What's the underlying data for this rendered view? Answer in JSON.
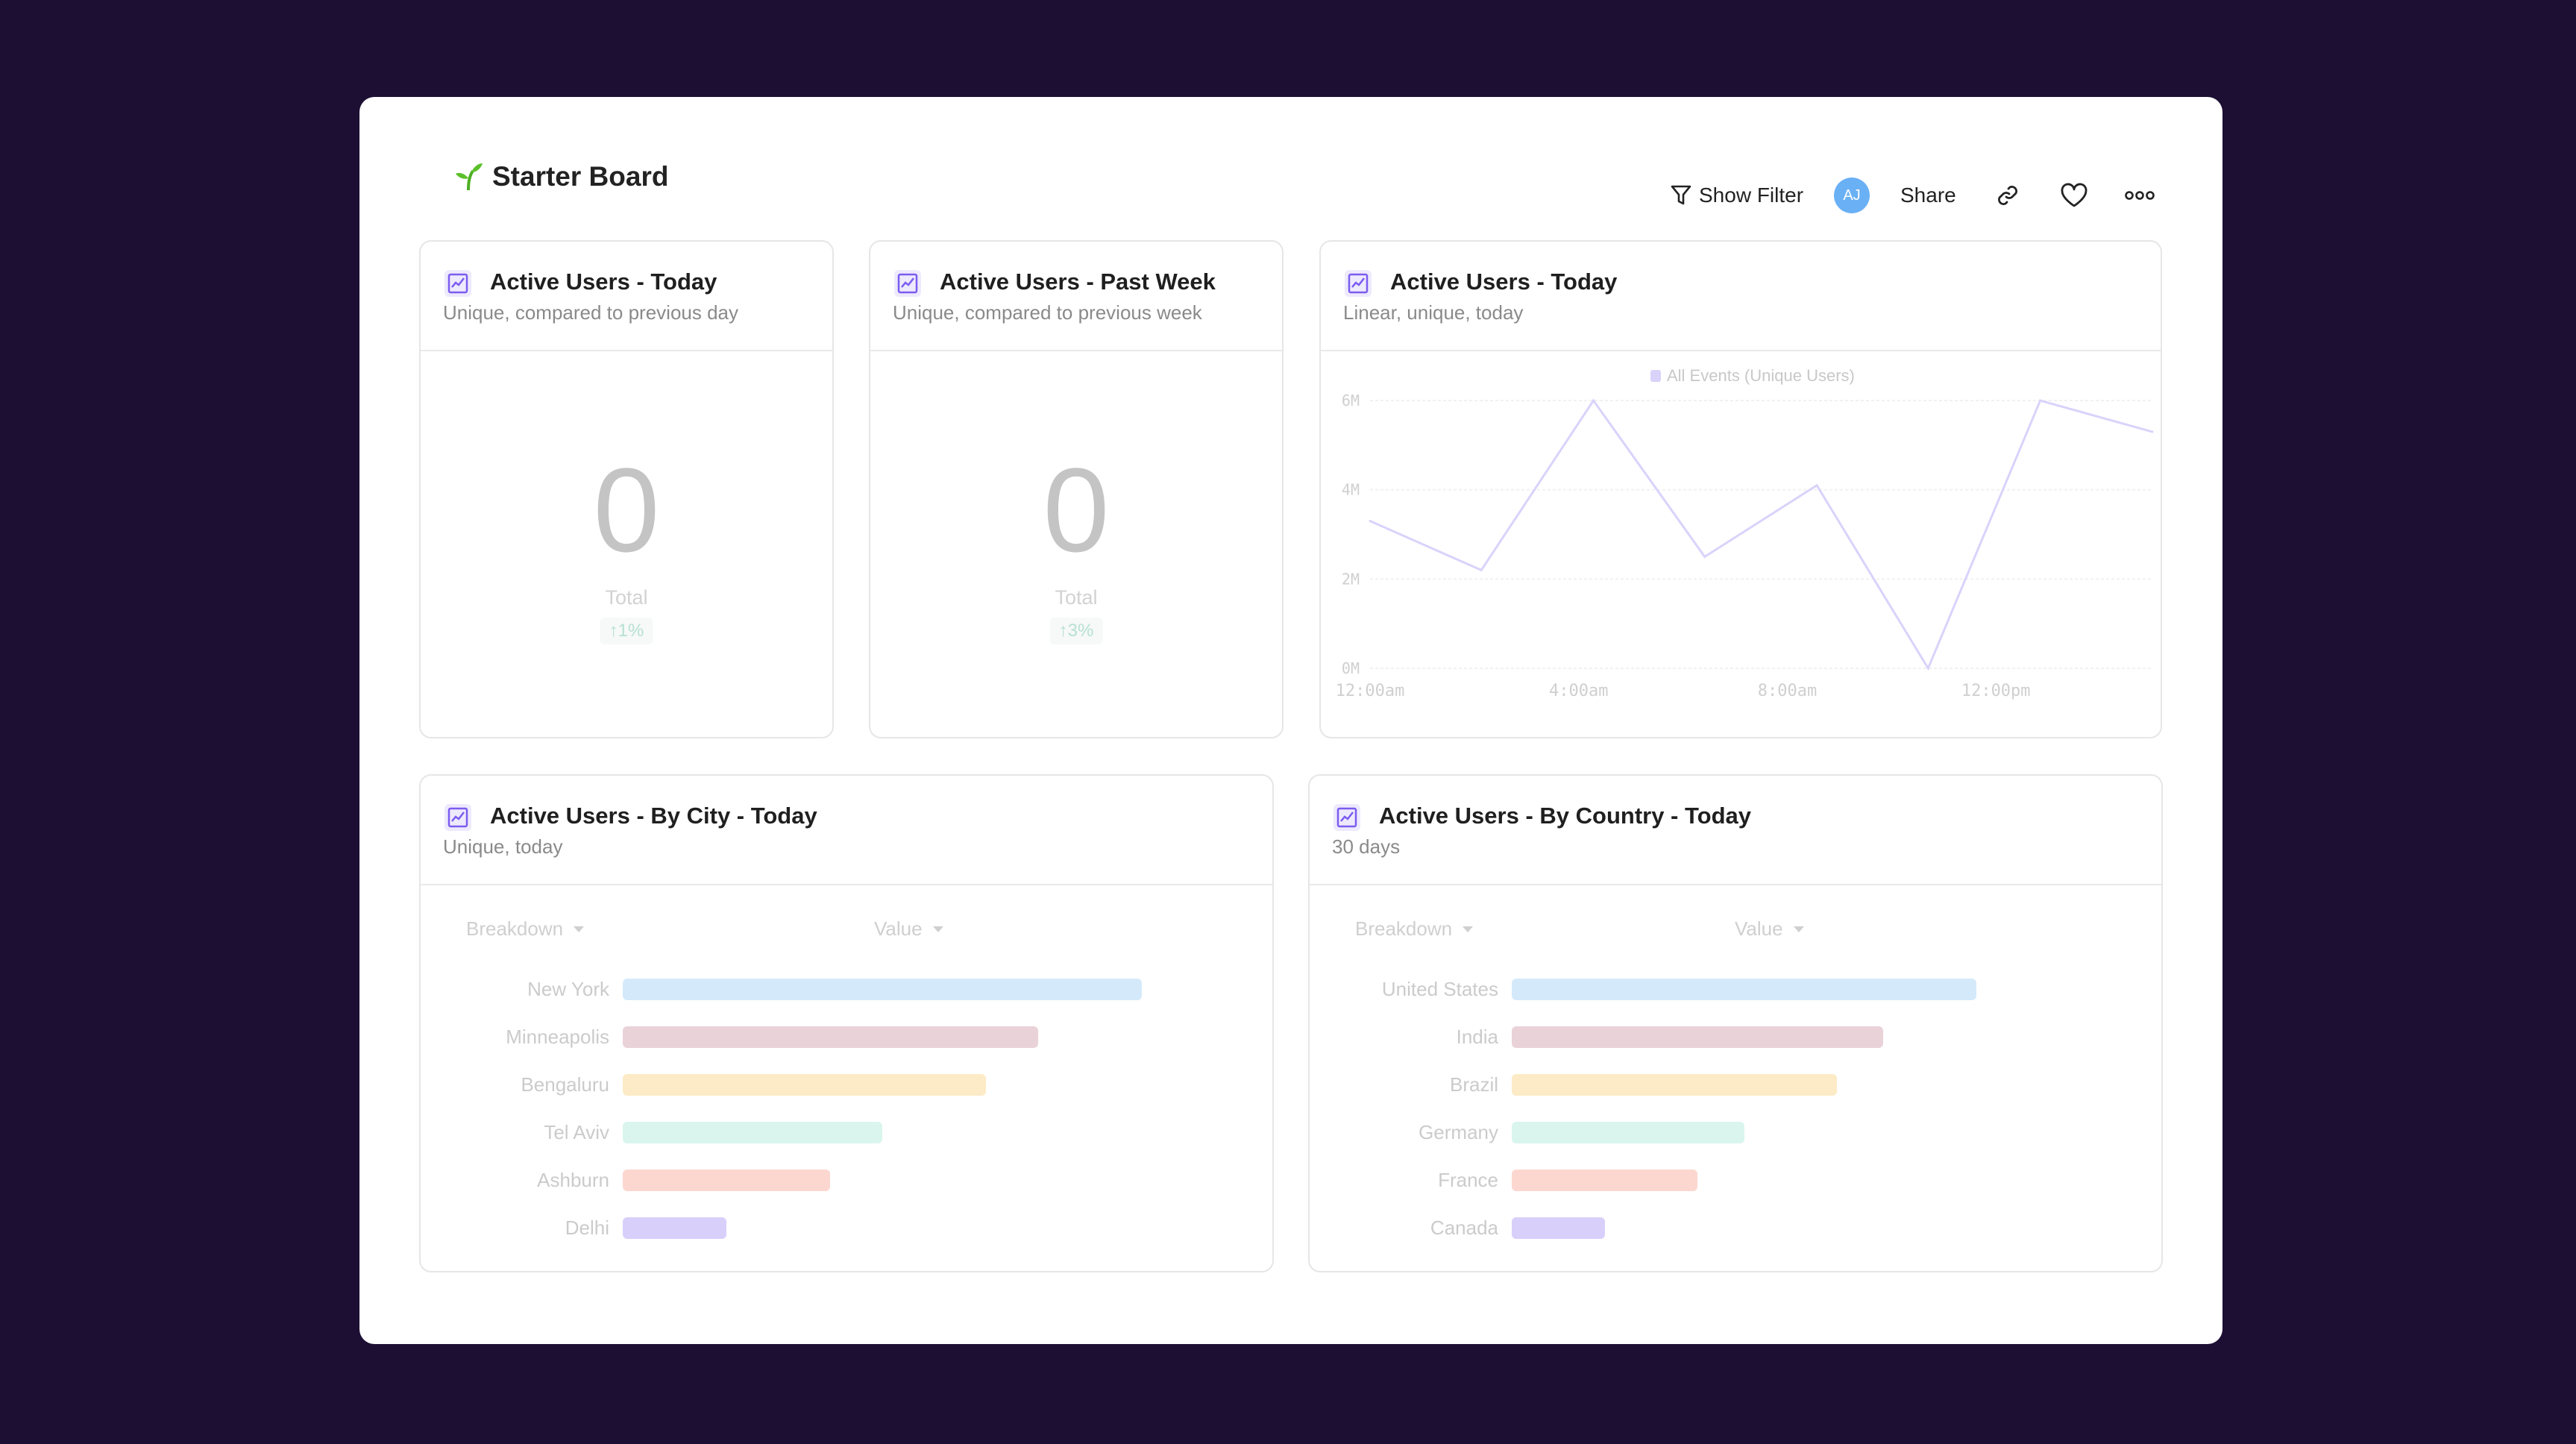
{
  "header": {
    "title": "Starter Board",
    "show_filter": "Show Filter",
    "avatar_initials": "AJ",
    "share": "Share",
    "avatar_color": "#6ab0f5"
  },
  "cards": [
    {
      "title": "Active Users - Today",
      "subtitle": "Unique, compared to previous day",
      "value": "0",
      "value_label": "Total",
      "change": "↑1%"
    },
    {
      "title": "Active Users - Past Week",
      "subtitle": "Unique, compared to previous week",
      "value": "0",
      "value_label": "Total",
      "change": "↑3%"
    },
    {
      "title": "Active Users - Today",
      "subtitle": "Linear, unique, today"
    },
    {
      "title": "Active Users - By City - Today",
      "subtitle": "Unique, today",
      "col_breakdown": "Breakdown",
      "col_value": "Value"
    },
    {
      "title": "Active Users - By Country - Today",
      "subtitle": "30 days",
      "col_breakdown": "Breakdown",
      "col_value": "Value"
    }
  ],
  "chart_data": [
    {
      "type": "line",
      "legend": "All Events (Unique Users)",
      "legend_placement": "top-center",
      "color": "#d9d3fb",
      "x": [
        "12:00am",
        "2:08am",
        "4:17am",
        "6:25am",
        "8:34am",
        "10:42am",
        "12:51pm",
        "3:00pm"
      ],
      "values": [
        3300000,
        2200000,
        6000000,
        2500000,
        4100000,
        0,
        6000000,
        5300000
      ],
      "yticks": [
        "0M",
        "2M",
        "4M",
        "6M"
      ],
      "ylim": [
        0,
        6000000
      ],
      "xticks": [
        "12:00am",
        "4:00am",
        "8:00am",
        "12:00pm"
      ],
      "grid": true
    },
    {
      "type": "bar",
      "orientation": "horizontal",
      "categories": [
        "New York",
        "Minneapolis",
        "Bengaluru",
        "Tel Aviv",
        "Ashburn",
        "Delhi"
      ],
      "values": [
        100,
        80,
        70,
        50,
        40,
        20
      ],
      "colors": [
        "#d4eafb",
        "#ead2d9",
        "#fcebc6",
        "#d9f5ee",
        "#fcd7d0",
        "#d8d0fa"
      ]
    },
    {
      "type": "bar",
      "orientation": "horizontal",
      "categories": [
        "United States",
        "India",
        "Brazil",
        "Germany",
        "France",
        "Canada"
      ],
      "values": [
        100,
        80,
        70,
        50,
        40,
        20
      ],
      "colors": [
        "#d4eafb",
        "#ead2d9",
        "#fcebc6",
        "#d9f5ee",
        "#fcd7d0",
        "#d8d0fa"
      ]
    }
  ]
}
